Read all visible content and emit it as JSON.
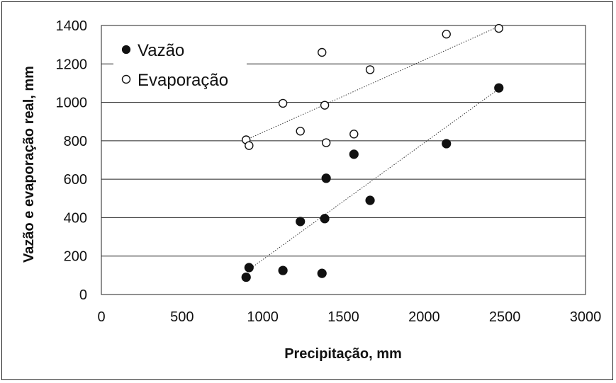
{
  "chart_data": {
    "type": "scatter",
    "xlabel": "Precipitação, mm",
    "ylabel": "Vazão e evaporação real, mm",
    "xlim": [
      0,
      3000
    ],
    "ylim": [
      0,
      1400
    ],
    "xticks": [
      0,
      500,
      1000,
      1500,
      2000,
      2500,
      3000
    ],
    "yticks": [
      0,
      200,
      400,
      600,
      800,
      1000,
      1200,
      1400
    ],
    "grid": "horizontal",
    "legend_position": "top-left",
    "series": [
      {
        "name": "Vazão",
        "marker": "filled-circle",
        "color": "#111111",
        "x": [
          897,
          915,
          1125,
          1233,
          1367,
          1384,
          1393,
          1565,
          1665,
          2138,
          2463
        ],
        "y": [
          90,
          140,
          125,
          380,
          110,
          395,
          605,
          730,
          490,
          785,
          1075
        ],
        "trendline": {
          "x": [
            915,
            2463
          ],
          "y": [
            130,
            1070
          ]
        }
      },
      {
        "name": "Evaporação",
        "marker": "open-circle",
        "color": "#111111",
        "x": [
          897,
          915,
          1125,
          1233,
          1367,
          1384,
          1393,
          1565,
          1665,
          2138,
          2463
        ],
        "y": [
          805,
          775,
          995,
          850,
          1260,
          985,
          790,
          835,
          1170,
          1355,
          1385
        ],
        "trendline": {
          "x": [
            897,
            2463
          ],
          "y": [
            805,
            1395
          ]
        }
      }
    ]
  }
}
